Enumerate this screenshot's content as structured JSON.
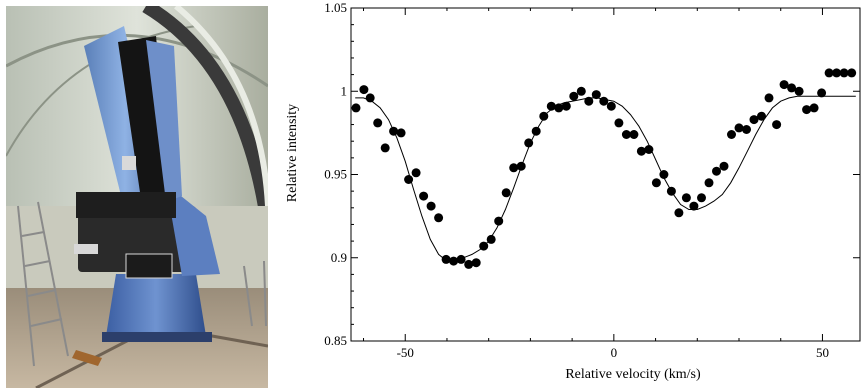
{
  "photo": {
    "subject": "telescope-photo"
  },
  "chart_data": {
    "type": "scatter",
    "xlabel": "Relative velocity (km/s)",
    "ylabel": "Relative intensity",
    "xlim": [
      -63,
      59
    ],
    "ylim": [
      0.85,
      1.05
    ],
    "xticks": [
      -50,
      0,
      50
    ],
    "xtick_labels": [
      "-50",
      "0",
      "50"
    ],
    "yticks": [
      0.85,
      0.9,
      0.95,
      1.0,
      1.05
    ],
    "ytick_labels": [
      "0.85",
      "0.9",
      "0.95",
      "1",
      "1.05"
    ],
    "grid": false,
    "series": [
      {
        "kind": "points",
        "marker": "filled-circle",
        "color": "#000000",
        "x": [
          -61.8,
          -59.9,
          -58.4,
          -56.6,
          -54.8,
          -52.8,
          -51.0,
          -49.2,
          -47.4,
          -45.6,
          -43.8,
          -42.0,
          -40.2,
          -38.4,
          -36.6,
          -34.8,
          -33.0,
          -31.2,
          -29.4,
          -27.6,
          -25.8,
          -24.0,
          -22.2,
          -20.4,
          -18.6,
          -16.8,
          -15.0,
          -13.2,
          -11.4,
          -9.6,
          -7.8,
          -6.0,
          -4.2,
          -2.4,
          -0.6,
          1.2,
          3.0,
          4.8,
          6.6,
          8.4,
          10.2,
          12.0,
          13.8,
          15.6,
          17.4,
          19.2,
          21.0,
          22.8,
          24.6,
          26.4,
          28.2,
          30.0,
          31.8,
          33.6,
          35.4,
          37.2,
          39.0,
          40.8,
          42.6,
          44.4,
          46.2,
          48.0,
          49.8,
          51.6,
          53.4,
          55.2,
          57.0,
          58.8
        ],
        "y": [
          0.99,
          1.001,
          0.996,
          0.981,
          0.966,
          0.976,
          0.975,
          0.947,
          0.951,
          0.937,
          0.931,
          0.924,
          0.899,
          0.898,
          0.899,
          0.896,
          0.897,
          0.907,
          0.911,
          0.922,
          0.939,
          0.954,
          0.955,
          0.969,
          0.976,
          0.985,
          0.991,
          0.99,
          0.991,
          0.997,
          1.0,
          0.994,
          0.998,
          0.994,
          0.991,
          0.981,
          0.974,
          0.974,
          0.964,
          0.965,
          0.945,
          0.95,
          0.94,
          0.927,
          0.936,
          0.931,
          0.936,
          0.945,
          0.952,
          0.955,
          0.974,
          0.978,
          0.977,
          0.983,
          0.985,
          0.996,
          0.98,
          1.004,
          1.002,
          1.0,
          0.989,
          0.99,
          0.999,
          1.011,
          1.011,
          1.011,
          1.011,
          1.011
        ]
      },
      {
        "kind": "line",
        "color": "#000000",
        "x": [
          -62,
          -60,
          -58,
          -56,
          -54,
          -52,
          -50,
          -48,
          -46,
          -44,
          -42,
          -40,
          -38,
          -36,
          -34,
          -32,
          -30,
          -28,
          -26,
          -24,
          -22,
          -20,
          -18,
          -16,
          -14,
          -12,
          -10,
          -8,
          -6,
          -4,
          -2,
          0,
          2,
          4,
          6,
          8,
          10,
          12,
          14,
          16,
          18,
          20,
          22,
          24,
          26,
          28,
          30,
          32,
          34,
          36,
          38,
          40,
          42,
          44,
          46,
          48,
          50,
          52,
          54,
          56,
          58
        ],
        "y": [
          0.996,
          0.996,
          0.994,
          0.99,
          0.983,
          0.972,
          0.958,
          0.941,
          0.925,
          0.911,
          0.902,
          0.898,
          0.898,
          0.9,
          0.902,
          0.905,
          0.91,
          0.918,
          0.929,
          0.942,
          0.956,
          0.969,
          0.979,
          0.987,
          0.991,
          0.993,
          0.994,
          0.995,
          0.996,
          0.996,
          0.995,
          0.994,
          0.991,
          0.986,
          0.979,
          0.97,
          0.959,
          0.948,
          0.939,
          0.932,
          0.929,
          0.929,
          0.931,
          0.934,
          0.938,
          0.945,
          0.954,
          0.964,
          0.974,
          0.983,
          0.99,
          0.994,
          0.996,
          0.997,
          0.997,
          0.997,
          0.997,
          0.997,
          0.997,
          0.997,
          0.997
        ]
      }
    ]
  }
}
